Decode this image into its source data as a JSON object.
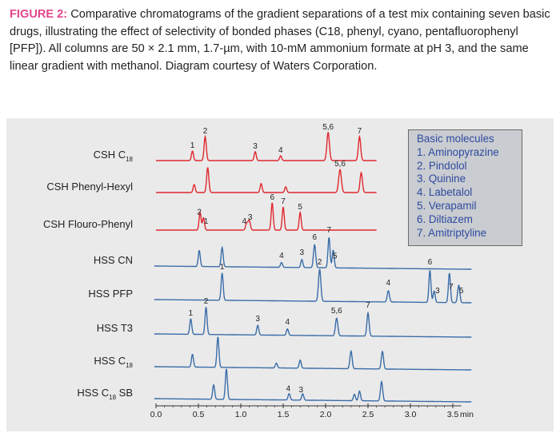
{
  "caption": {
    "figure_label": "FIGURE 2:",
    "text": "Comparative chromatograms of the gradient separations of a test mix containing seven basic drugs, illustrating the effect of selectivity of bonded phases (C18, phenyl, cyano, pentafluorophenyl [PFP]). All columns are 50 × 2.1 mm, 1.7-µm, with 10-mM ammonium formate at pH 3, and the same linear gradient with methanol. Diagram courtesy of Waters Corporation."
  },
  "legend": {
    "title": "Basic molecules",
    "items": [
      "1. Aminopyrazine",
      "2. Pindolol",
      "3. Quinine",
      "4. Labetalol",
      "5. Verapamil",
      "6. Diltiazem",
      "7. Amitriptyline"
    ]
  },
  "colors": {
    "red_trace": "#e0282e",
    "blue_trace": "#3a6da8",
    "axis": "#333333",
    "figure_label": "#e2458c",
    "legend_text": "#2f4aa0"
  },
  "chart_data": {
    "type": "line",
    "title": "",
    "xlabel": "min",
    "xlim": [
      0.0,
      3.7
    ],
    "x_ticks": [
      "0.0",
      "0.5",
      "1.0",
      "1.5",
      "2.0",
      "2.5",
      "3.0",
      "3.5"
    ],
    "x_unit_label": "min",
    "series": [
      {
        "name": "CSH C18",
        "name_main": "CSH C",
        "name_sub": "18",
        "name_tail": "",
        "color": "red",
        "peaks": [
          [
            0.43,
            0.3,
            0.012
          ],
          [
            0.58,
            0.75,
            0.013
          ],
          [
            1.17,
            0.28,
            0.012
          ],
          [
            1.47,
            0.15,
            0.012
          ],
          [
            2.03,
            0.88,
            0.015
          ],
          [
            2.4,
            0.75,
            0.014
          ]
        ],
        "labels": [
          {
            "t": "1",
            "x": 0.43
          },
          {
            "t": "2",
            "x": 0.58
          },
          {
            "t": "3",
            "x": 1.17
          },
          {
            "t": "4",
            "x": 1.47
          },
          {
            "t": "5,6",
            "x": 2.03
          },
          {
            "t": "7",
            "x": 2.4
          }
        ]
      },
      {
        "name": "CSH Phenyl-Hexyl",
        "name_main": "CSH Phenyl-Hexyl",
        "name_sub": "",
        "name_tail": "",
        "color": "red",
        "peaks": [
          [
            0.45,
            0.25,
            0.012
          ],
          [
            0.61,
            0.78,
            0.013
          ],
          [
            1.24,
            0.28,
            0.012
          ],
          [
            1.53,
            0.18,
            0.012
          ],
          [
            2.17,
            0.72,
            0.016
          ],
          [
            2.42,
            0.62,
            0.014
          ]
        ],
        "labels": [
          {
            "t": "5,6",
            "x": 2.17
          }
        ]
      },
      {
        "name": "CSH Flouro-Phenyl",
        "name_main": "CSH Flouro-Phenyl",
        "name_sub": "",
        "name_tail": "",
        "color": "red",
        "peaks": [
          [
            0.52,
            0.55,
            0.012
          ],
          [
            0.56,
            0.38,
            0.012
          ],
          [
            1.07,
            0.22,
            0.013
          ],
          [
            1.1,
            0.3,
            0.013
          ],
          [
            1.37,
            0.85,
            0.012
          ],
          [
            1.5,
            0.72,
            0.012
          ],
          [
            1.7,
            0.55,
            0.012
          ]
        ],
        "labels": [
          {
            "t": "2",
            "x": 0.51
          },
          {
            "t": "1",
            "x": 0.59
          },
          {
            "t": "4",
            "x": 1.04
          },
          {
            "t": "3",
            "x": 1.11
          },
          {
            "t": "6",
            "x": 1.37
          },
          {
            "t": "7",
            "x": 1.5
          },
          {
            "t": "5",
            "x": 1.7
          }
        ]
      },
      {
        "name": "HSS CN",
        "name_main": "HSS CN",
        "name_sub": "",
        "name_tail": "",
        "color": "blue",
        "peaks": [
          [
            0.51,
            0.5,
            0.012
          ],
          [
            0.78,
            0.6,
            0.012
          ],
          [
            1.48,
            0.15,
            0.012
          ],
          [
            1.72,
            0.25,
            0.012
          ],
          [
            1.87,
            0.72,
            0.013
          ],
          [
            2.04,
            0.95,
            0.012
          ],
          [
            2.09,
            0.55,
            0.012
          ]
        ],
        "labels": [
          {
            "t": "4",
            "x": 1.48
          },
          {
            "t": "3",
            "x": 1.72
          },
          {
            "t": "6",
            "x": 1.87
          },
          {
            "t": "7",
            "x": 2.04
          },
          {
            "t": "5",
            "x": 2.11
          }
        ]
      },
      {
        "name": "HSS PFP",
        "name_main": "HSS PFP",
        "name_sub": "",
        "name_tail": "",
        "color": "blue",
        "peaks": [
          [
            0.78,
            0.85,
            0.012
          ],
          [
            1.93,
            1.0,
            0.014
          ],
          [
            2.74,
            0.35,
            0.013
          ],
          [
            3.23,
            1.0,
            0.012
          ],
          [
            3.28,
            0.35,
            0.012
          ],
          [
            3.46,
            0.92,
            0.012
          ],
          [
            3.57,
            0.55,
            0.013
          ]
        ],
        "labels": [
          {
            "t": "1",
            "x": 0.78
          },
          {
            "t": "2",
            "x": 1.93
          },
          {
            "t": "4",
            "x": 2.74
          },
          {
            "t": "6",
            "x": 3.23
          },
          {
            "t": "3",
            "x": 3.32
          },
          {
            "t": "7",
            "x": 3.48
          },
          {
            "t": "5",
            "x": 3.6
          }
        ]
      },
      {
        "name": "HSS T3",
        "name_main": "HSS T3",
        "name_sub": "",
        "name_tail": "",
        "color": "blue",
        "peaks": [
          [
            0.41,
            0.48,
            0.012
          ],
          [
            0.59,
            0.85,
            0.012
          ],
          [
            1.2,
            0.3,
            0.012
          ],
          [
            1.55,
            0.2,
            0.012
          ],
          [
            2.13,
            0.55,
            0.014
          ],
          [
            2.5,
            0.72,
            0.013
          ]
        ],
        "labels": [
          {
            "t": "1",
            "x": 0.41
          },
          {
            "t": "2",
            "x": 0.59
          },
          {
            "t": "3",
            "x": 1.2
          },
          {
            "t": "4",
            "x": 1.55
          },
          {
            "t": "5,6",
            "x": 2.13
          },
          {
            "t": "7",
            "x": 2.5
          }
        ]
      },
      {
        "name": "HSS C18",
        "name_main": "HSS C",
        "name_sub": "18",
        "name_tail": "",
        "color": "blue",
        "peaks": [
          [
            0.43,
            0.4,
            0.012
          ],
          [
            0.73,
            0.95,
            0.012
          ],
          [
            1.42,
            0.15,
            0.012
          ],
          [
            1.7,
            0.25,
            0.012
          ],
          [
            2.3,
            0.55,
            0.013
          ],
          [
            2.67,
            0.55,
            0.013
          ]
        ],
        "labels": []
      },
      {
        "name": "HSS C18 SB",
        "name_main": "HSS C",
        "name_sub": "18",
        "name_tail": "SB",
        "color": "blue",
        "peaks": [
          [
            0.68,
            0.45,
            0.012
          ],
          [
            0.83,
            0.95,
            0.012
          ],
          [
            1.57,
            0.2,
            0.012
          ],
          [
            1.73,
            0.2,
            0.012
          ],
          [
            2.34,
            0.2,
            0.012
          ],
          [
            2.4,
            0.3,
            0.012
          ],
          [
            2.66,
            0.6,
            0.013
          ]
        ],
        "labels": [
          {
            "t": "4",
            "x": 1.56
          },
          {
            "t": "3",
            "x": 1.71
          }
        ]
      }
    ]
  }
}
